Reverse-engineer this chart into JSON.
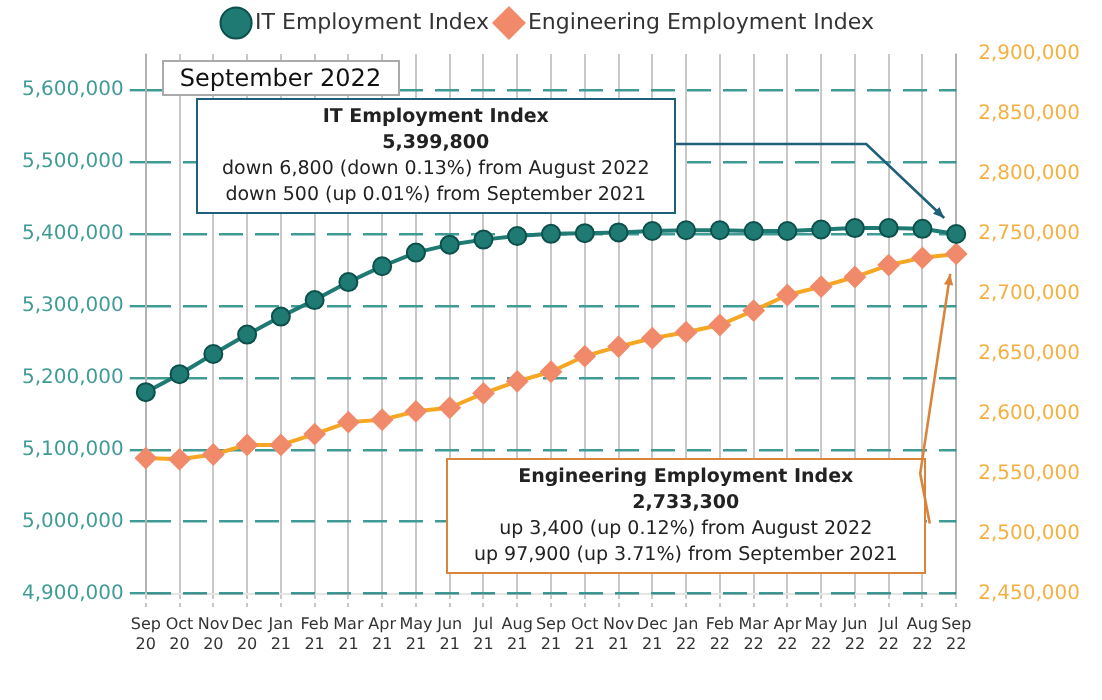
{
  "chart_data": {
    "type": "line",
    "title": "September 2022",
    "categories": [
      "Sep 20",
      "Oct 20",
      "Nov 20",
      "Dec 20",
      "Jan 21",
      "Feb 21",
      "Mar 21",
      "Apr 21",
      "May 21",
      "Jun 21",
      "Jul 21",
      "Aug 21",
      "Sep 21",
      "Oct 21",
      "Nov 21",
      "Dec 21",
      "Jan 22",
      "Feb 22",
      "Mar 22",
      "Apr 22",
      "May 22",
      "Jun 22",
      "Jul 22",
      "Aug 22",
      "Sep 22"
    ],
    "series": [
      {
        "name": "IT Employment Index",
        "color": "#1f7a74",
        "marker": "circle",
        "values": [
          5180000,
          5205000,
          5233000,
          5260000,
          5285000,
          5308000,
          5333000,
          5355000,
          5374000,
          5385000,
          5392000,
          5397000,
          5400000,
          5401000,
          5402000,
          5404000,
          5405000,
          5405000,
          5404000,
          5404000,
          5406000,
          5408000,
          5408000,
          5407000,
          5399800
        ]
      },
      {
        "name": "Engineering Employment Index",
        "color": "#f08a6a",
        "marker": "diamond",
        "axis": "y2",
        "values": [
          2563000,
          2562000,
          2566000,
          2574000,
          2574000,
          2583000,
          2593000,
          2595000,
          2602000,
          2605000,
          2617000,
          2627000,
          2635000,
          2648000,
          2656000,
          2663000,
          2668000,
          2674000,
          2686000,
          2699000,
          2706000,
          2714000,
          2724000,
          2730000,
          2733300
        ]
      }
    ],
    "ylim": [
      4900000,
      5650000
    ],
    "yticks": [
      {
        "value": 4900000,
        "label": "4,900,000"
      },
      {
        "value": 5000000,
        "label": "5,000,000"
      },
      {
        "value": 5100000,
        "label": "5,100,000"
      },
      {
        "value": 5200000,
        "label": "5,200,000"
      },
      {
        "value": 5300000,
        "label": "5,300,000"
      },
      {
        "value": 5400000,
        "label": "5,400,000"
      },
      {
        "value": 5500000,
        "label": "5,500,000"
      },
      {
        "value": 5600000,
        "label": "5,600,000"
      }
    ],
    "y2lim": [
      2450000,
      2900000
    ],
    "y2ticks": [
      {
        "value": 2450000,
        "label": "2,450,000"
      },
      {
        "value": 2500000,
        "label": "2,500,000"
      },
      {
        "value": 2550000,
        "label": "2,550,000"
      },
      {
        "value": 2600000,
        "label": "2,600,000"
      },
      {
        "value": 2650000,
        "label": "2,650,000"
      },
      {
        "value": 2700000,
        "label": "2,700,000"
      },
      {
        "value": 2750000,
        "label": "2,750,000"
      },
      {
        "value": 2800000,
        "label": "2,800,000"
      },
      {
        "value": 2850000,
        "label": "2,850,000"
      },
      {
        "value": 2900000,
        "label": "2,900,000"
      }
    ],
    "grid": true,
    "legend": "top",
    "annotations": [
      "IT Employment Index\n5,399,800\ndown 6,800 (down 0.13%) from August 2022\ndown 500 (up 0.01%) from September 2021",
      "Engineering Employment Index\n2,733,300\nup 3,400 (up 0.12%) from August 2022\nup 97,900 (up 3.71%) from September 2021"
    ]
  }
}
